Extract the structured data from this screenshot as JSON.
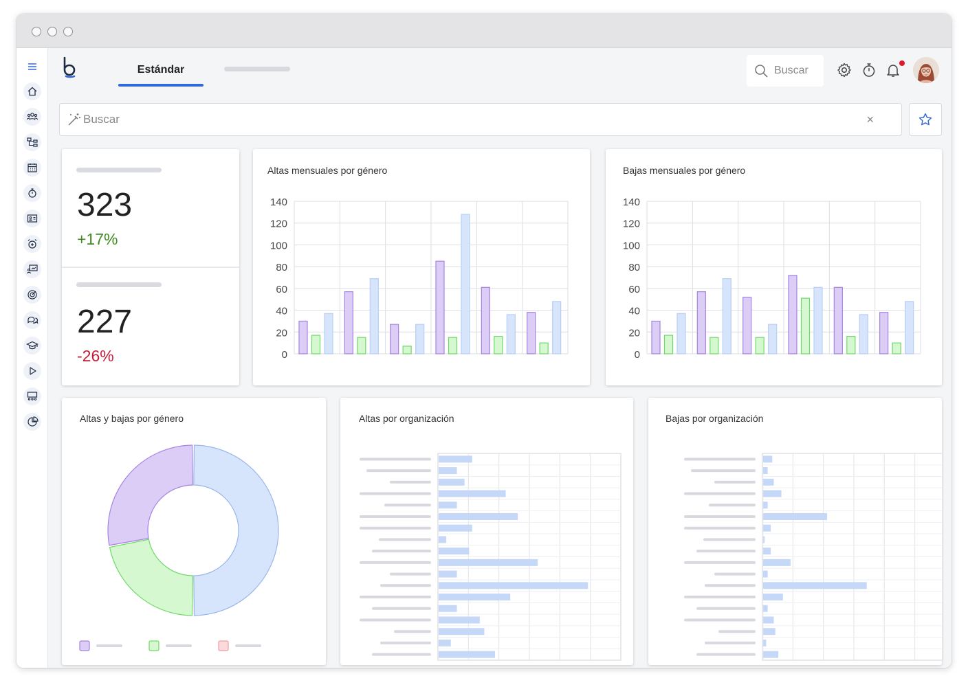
{
  "header": {
    "active_tab": "Estándar",
    "search_placeholder": "Buscar"
  },
  "filter": {
    "search_placeholder": "Buscar",
    "clear_label": "×"
  },
  "kpis": [
    {
      "value": "323",
      "change": "+17%",
      "change_color": "#3f8a1e"
    },
    {
      "value": "227",
      "change": "-26%",
      "change_color": "#c21c3a"
    }
  ],
  "colors": {
    "female": "#dccdf7",
    "female_stroke": "#a583e0",
    "male": "#d6f8d0",
    "male_stroke": "#6fd967",
    "other": "#d6e4fc",
    "other_stroke": "#b8cff4",
    "accent": "#3368d8"
  },
  "chart_data": [
    {
      "type": "bar",
      "title": "Altas mensuales por género",
      "ylim": [
        0,
        140
      ],
      "yticks": [
        0,
        20,
        40,
        60,
        80,
        100,
        120,
        140
      ],
      "groups": 6,
      "series": [
        {
          "values": [
            30,
            57,
            27,
            85,
            61,
            38
          ]
        },
        {
          "values": [
            17,
            15,
            7,
            15,
            16,
            10
          ]
        },
        {
          "values": [
            37,
            69,
            27,
            128,
            36,
            48
          ]
        }
      ]
    },
    {
      "type": "bar",
      "title": "Bajas mensuales por género",
      "ylim": [
        0,
        140
      ],
      "yticks": [
        0,
        20,
        40,
        60,
        80,
        100,
        120,
        140
      ],
      "groups": 6,
      "series": [
        {
          "values": [
            30,
            57,
            52,
            72,
            61,
            38
          ]
        },
        {
          "values": [
            17,
            15,
            15,
            51,
            16,
            10
          ]
        },
        {
          "values": [
            37,
            69,
            27,
            61,
            36,
            48
          ]
        }
      ]
    },
    {
      "type": "pie",
      "title": "Altas y bajas por género",
      "values": [
        50,
        22,
        28
      ]
    },
    {
      "type": "bar",
      "orientation": "horizontal",
      "title": "Altas por organización",
      "xlim": [
        0,
        6
      ],
      "values": [
        1.1,
        0.6,
        0.85,
        2.2,
        0.6,
        2.6,
        1.1,
        0.25,
        1.0,
        3.25,
        0.6,
        4.9,
        2.35,
        0.6,
        1.35,
        1.5,
        0.4,
        1.85
      ]
    },
    {
      "type": "bar",
      "orientation": "horizontal",
      "title": "Bajas por organización",
      "xlim": [
        0,
        6
      ],
      "values": [
        0.3,
        0.15,
        0.35,
        0.6,
        0.15,
        2.1,
        0.25,
        0.05,
        0.25,
        0.9,
        0.15,
        3.4,
        0.65,
        0.15,
        0.35,
        0.4,
        0.1,
        0.5
      ]
    }
  ]
}
